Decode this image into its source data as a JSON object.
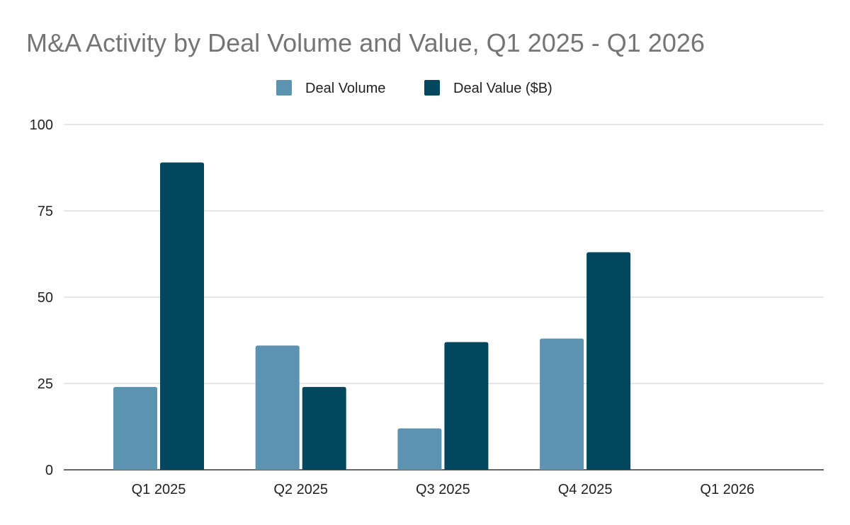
{
  "chart_data": {
    "type": "bar",
    "title": "M&A Activity by Deal Volume and Value, Q1 2025 - Q1 2026",
    "xlabel": "",
    "ylabel": "",
    "categories": [
      "Q1 2025",
      "Q2 2025",
      "Q3 2025",
      "Q4 2025",
      "Q1 2026"
    ],
    "series": [
      {
        "name": "Deal Volume",
        "color": "#5b93b0",
        "values": [
          24,
          36,
          12,
          38,
          null
        ]
      },
      {
        "name": "Deal Value ($B)",
        "color": "#03475f",
        "values": [
          89,
          24,
          37,
          63,
          null
        ]
      }
    ],
    "ylim": [
      0,
      100
    ],
    "yticks": [
      0,
      25,
      50,
      75,
      100
    ],
    "grid": true,
    "legend_position": "top"
  }
}
